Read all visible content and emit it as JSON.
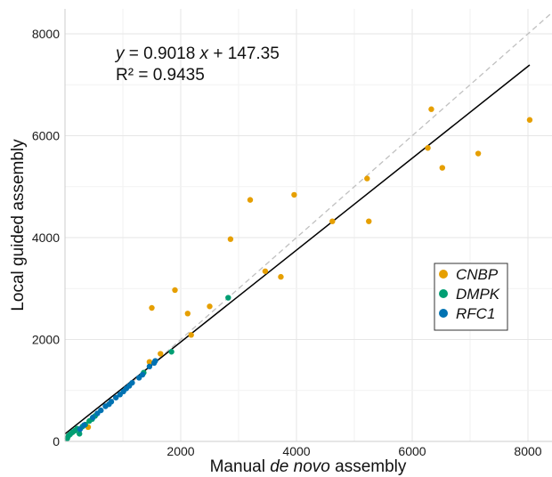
{
  "chart_data": {
    "type": "scatter",
    "title": "",
    "xlabel_parts": [
      "Manual ",
      "de novo",
      " assembly"
    ],
    "ylabel": "Local guided assembly",
    "xlim": [
      0,
      8400
    ],
    "ylim": [
      0,
      8500
    ],
    "x_ticks": [
      {
        "value": 2000,
        "label": "2000"
      },
      {
        "value": 4000,
        "label": "4000"
      },
      {
        "value": 6000,
        "label": "6000"
      },
      {
        "value": 8000,
        "label": "8000"
      }
    ],
    "y_ticks": [
      {
        "value": 0,
        "label": "0"
      },
      {
        "value": 2000,
        "label": "2000"
      },
      {
        "value": 4000,
        "label": "4000"
      },
      {
        "value": 6000,
        "label": "6000"
      },
      {
        "value": 8000,
        "label": "8000"
      }
    ],
    "grid": true,
    "legend_position": "right-middle",
    "equation": {
      "var_y": "y",
      "mid": " = 0.9018 ",
      "var_x": "x",
      "tail": " + 147.35",
      "r2": "R² = 0.9435"
    },
    "fit_line": {
      "slope": 0.9018,
      "intercept": 147.35,
      "x_start": 0,
      "x_end": 8030,
      "color": "#000000"
    },
    "identity_line": {
      "color": "#c0c0c0"
    },
    "series": [
      {
        "name": "CNBP",
        "color": "#E69F00",
        "points": [
          [
            400,
            280
          ],
          [
            1460,
            1560
          ],
          [
            1500,
            2620
          ],
          [
            1650,
            1720
          ],
          [
            1900,
            2970
          ],
          [
            2120,
            2510
          ],
          [
            2180,
            2090
          ],
          [
            2500,
            2650
          ],
          [
            2860,
            3970
          ],
          [
            3200,
            4740
          ],
          [
            3460,
            3340
          ],
          [
            3730,
            3230
          ],
          [
            3960,
            4840
          ],
          [
            4620,
            4320
          ],
          [
            5220,
            5160
          ],
          [
            5250,
            4320
          ],
          [
            6270,
            5760
          ],
          [
            6330,
            6520
          ],
          [
            6520,
            5370
          ],
          [
            7140,
            5650
          ],
          [
            8030,
            6310
          ]
        ]
      },
      {
        "name": "DMPK",
        "color": "#009E73",
        "points": [
          [
            40,
            60
          ],
          [
            60,
            110
          ],
          [
            90,
            140
          ],
          [
            130,
            180
          ],
          [
            170,
            210
          ],
          [
            210,
            250
          ],
          [
            250,
            150
          ],
          [
            300,
            290
          ],
          [
            350,
            330
          ],
          [
            420,
            400
          ],
          [
            470,
            440
          ],
          [
            520,
            500
          ],
          [
            1360,
            1350
          ],
          [
            1840,
            1760
          ],
          [
            2820,
            2820
          ]
        ]
      },
      {
        "name": "RFC1",
        "color": "#0072B2",
        "points": [
          [
            260,
            240
          ],
          [
            330,
            320
          ],
          [
            480,
            470
          ],
          [
            560,
            550
          ],
          [
            620,
            610
          ],
          [
            700,
            690
          ],
          [
            760,
            730
          ],
          [
            800,
            780
          ],
          [
            880,
            860
          ],
          [
            950,
            920
          ],
          [
            1010,
            980
          ],
          [
            1060,
            1040
          ],
          [
            1110,
            1090
          ],
          [
            1160,
            1150
          ],
          [
            1280,
            1250
          ],
          [
            1340,
            1310
          ],
          [
            1460,
            1470
          ],
          [
            1540,
            1540
          ],
          [
            1560,
            1580
          ]
        ]
      }
    ]
  }
}
